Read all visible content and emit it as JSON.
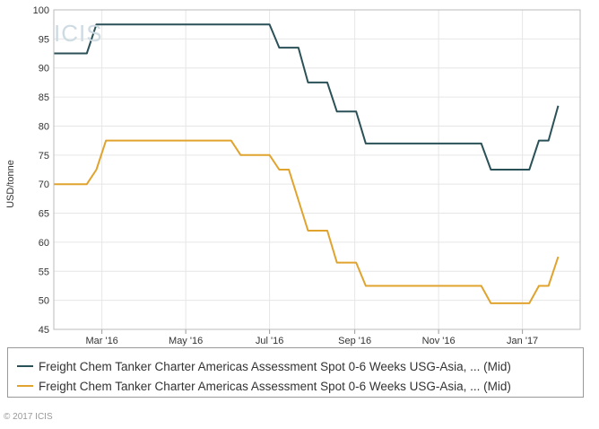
{
  "chart_data": {
    "type": "line",
    "title": "",
    "ylabel": "USD/tonne",
    "xlabel": "",
    "ylim": [
      45,
      100
    ],
    "yticks": [
      45,
      50,
      55,
      60,
      65,
      70,
      75,
      80,
      85,
      90,
      95,
      100
    ],
    "xlim": [
      "2016-01-26",
      "2017-02-12"
    ],
    "xticks": [
      {
        "date": "2016-03-01",
        "label": "Mar '16"
      },
      {
        "date": "2016-05-01",
        "label": "May '16"
      },
      {
        "date": "2016-07-01",
        "label": "Jul '16"
      },
      {
        "date": "2016-09-01",
        "label": "Sep '16"
      },
      {
        "date": "2016-11-01",
        "label": "Nov '16"
      },
      {
        "date": "2017-01-01",
        "label": "Jan '17"
      }
    ],
    "grid": true,
    "legend_position": "bottom",
    "series": [
      {
        "name": "Freight Chem Tanker Charter Americas Assessment Spot 0-6 Weeks USG-Asia, ... (Mid)",
        "color": "#2b5158",
        "points": [
          [
            "2016-01-26",
            92.5
          ],
          [
            "2016-02-19",
            92.5
          ],
          [
            "2016-02-26",
            97.5
          ],
          [
            "2016-07-01",
            97.5
          ],
          [
            "2016-07-08",
            93.5
          ],
          [
            "2016-07-22",
            93.5
          ],
          [
            "2016-07-29",
            87.5
          ],
          [
            "2016-08-12",
            87.5
          ],
          [
            "2016-08-19",
            82.5
          ],
          [
            "2016-09-02",
            82.5
          ],
          [
            "2016-09-09",
            77.0
          ],
          [
            "2016-12-02",
            77.0
          ],
          [
            "2016-12-09",
            72.5
          ],
          [
            "2017-01-06",
            72.5
          ],
          [
            "2017-01-13",
            77.5
          ],
          [
            "2017-01-20",
            77.5
          ],
          [
            "2017-01-27",
            83.5
          ]
        ]
      },
      {
        "name": "Freight Chem Tanker Charter Americas Assessment Spot 0-6 Weeks USG-Asia, ... (Mid)",
        "color": "#e0a32e",
        "points": [
          [
            "2016-01-26",
            70.0
          ],
          [
            "2016-02-19",
            70.0
          ],
          [
            "2016-02-26",
            72.5
          ],
          [
            "2016-03-04",
            77.5
          ],
          [
            "2016-06-03",
            77.5
          ],
          [
            "2016-06-10",
            75.0
          ],
          [
            "2016-07-01",
            75.0
          ],
          [
            "2016-07-08",
            72.5
          ],
          [
            "2016-07-15",
            72.5
          ],
          [
            "2016-07-29",
            62.0
          ],
          [
            "2016-08-12",
            62.0
          ],
          [
            "2016-08-19",
            56.5
          ],
          [
            "2016-09-02",
            56.5
          ],
          [
            "2016-09-09",
            52.5
          ],
          [
            "2016-12-02",
            52.5
          ],
          [
            "2016-12-09",
            49.5
          ],
          [
            "2017-01-06",
            49.5
          ],
          [
            "2017-01-13",
            52.5
          ],
          [
            "2017-01-20",
            52.5
          ],
          [
            "2017-01-27",
            57.5
          ]
        ]
      }
    ]
  },
  "watermark": "ICIS",
  "footer": "© 2017 ICIS"
}
